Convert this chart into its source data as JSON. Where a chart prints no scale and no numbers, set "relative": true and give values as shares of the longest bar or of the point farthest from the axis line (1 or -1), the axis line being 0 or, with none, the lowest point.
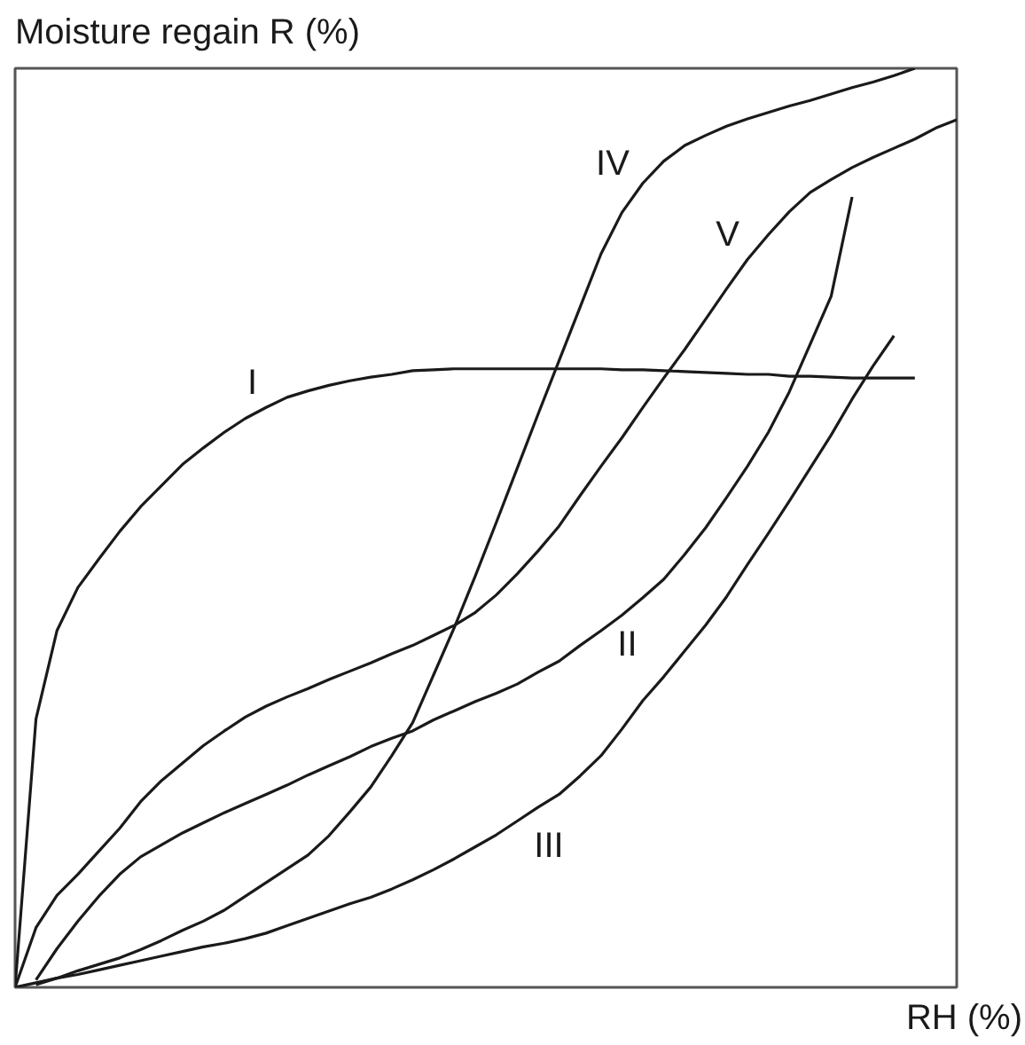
{
  "chart_data": {
    "type": "line",
    "ylabel": "Moisture regain R (%)",
    "xlabel": "RH (%)",
    "relative": true,
    "categories": [
      null,
      null,
      null,
      null,
      null,
      null,
      null,
      null,
      null,
      null,
      null,
      null,
      null,
      null,
      null,
      null,
      null,
      null,
      null,
      null,
      null,
      null,
      null,
      null,
      null,
      null,
      null,
      null,
      null,
      null,
      null,
      null,
      null,
      null,
      null,
      null,
      null,
      null,
      null,
      null,
      null,
      null,
      null,
      null,
      null,
      null
    ],
    "series": [
      {
        "name": "I",
        "color": "#1a1a1a",
        "values": [
          0,
          0.292,
          0.388,
          0.435,
          0.466,
          0.496,
          0.523,
          0.546,
          0.569,
          0.587,
          0.604,
          0.619,
          0.631,
          0.642,
          0.649,
          0.655,
          0.66,
          0.664,
          0.667,
          0.671,
          0.672,
          0.673,
          0.673,
          0.673,
          0.673,
          0.673,
          0.673,
          0.673,
          0.673,
          0.672,
          0.672,
          0.671,
          0.67,
          0.669,
          0.668,
          0.667,
          0.667,
          0.665,
          0.665,
          0.664,
          0.663,
          0.663,
          0.663,
          0.663,
          null,
          null
        ]
      },
      {
        "name": "II",
        "color": "#1a1a1a",
        "values": [
          null,
          0.008,
          0.042,
          0.072,
          0.099,
          0.123,
          0.142,
          0.155,
          0.168,
          0.179,
          0.19,
          0.2,
          0.21,
          0.22,
          0.231,
          0.241,
          0.251,
          0.262,
          0.271,
          0.279,
          0.291,
          0.301,
          0.311,
          0.32,
          0.33,
          0.343,
          0.355,
          0.372,
          0.388,
          0.405,
          0.424,
          0.444,
          0.471,
          0.5,
          0.533,
          0.567,
          0.604,
          0.648,
          0.7,
          0.752,
          0.86,
          null,
          null,
          null,
          null,
          null
        ]
      },
      {
        "name": "III",
        "color": "#1a1a1a",
        "values": [
          0,
          0.005,
          0.01,
          0.014,
          0.019,
          0.024,
          0.029,
          0.034,
          0.039,
          0.044,
          0.048,
          0.053,
          0.059,
          0.067,
          0.075,
          0.083,
          0.091,
          0.098,
          0.107,
          0.117,
          0.128,
          0.14,
          0.153,
          0.166,
          0.181,
          0.196,
          0.21,
          0.23,
          0.252,
          0.281,
          0.312,
          0.338,
          0.366,
          0.394,
          0.425,
          0.46,
          0.494,
          0.529,
          0.565,
          0.601,
          0.64,
          0.676,
          0.709,
          null,
          null,
          null
        ]
      },
      {
        "name": "IV",
        "color": "#1a1a1a",
        "values": [
          null,
          0.003,
          0.01,
          0.018,
          0.025,
          0.032,
          0.041,
          0.051,
          0.062,
          0.072,
          0.084,
          0.099,
          0.114,
          0.129,
          0.144,
          0.165,
          0.191,
          0.218,
          0.252,
          0.288,
          0.34,
          0.392,
          0.448,
          0.506,
          0.565,
          0.624,
          0.682,
          0.74,
          0.798,
          0.843,
          0.875,
          0.899,
          0.916,
          0.927,
          0.937,
          0.945,
          0.952,
          0.959,
          0.965,
          0.972,
          0.979,
          0.985,
          0.992,
          1,
          null,
          null
        ]
      },
      {
        "name": "V",
        "color": "#1a1a1a",
        "values": [
          0,
          0.065,
          0.1,
          0.123,
          0.148,
          0.173,
          0.202,
          0.225,
          0.244,
          0.263,
          0.279,
          0.294,
          0.306,
          0.316,
          0.325,
          0.335,
          0.344,
          0.353,
          0.363,
          0.372,
          0.383,
          0.394,
          0.408,
          0.427,
          0.45,
          0.475,
          0.502,
          0.535,
          0.567,
          0.598,
          0.631,
          0.663,
          0.694,
          0.727,
          0.76,
          0.792,
          0.819,
          0.844,
          0.865,
          0.879,
          0.892,
          0.903,
          0.913,
          0.923,
          0.935,
          0.944
        ]
      }
    ]
  }
}
